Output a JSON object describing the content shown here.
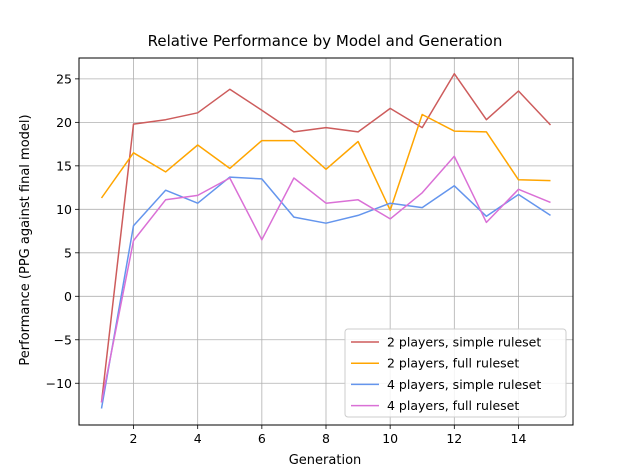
{
  "chart_data": {
    "type": "line",
    "title": "Relative Performance by Model and Generation",
    "xlabel": "Generation",
    "ylabel": "Performance (PPG against final model)",
    "x": [
      1,
      2,
      3,
      4,
      5,
      6,
      7,
      8,
      9,
      10,
      11,
      12,
      13,
      14,
      15
    ],
    "xlim": [
      0.3,
      15.7
    ],
    "ylim": [
      -14.8,
      27.4
    ],
    "xticks": [
      2,
      4,
      6,
      8,
      10,
      12,
      14
    ],
    "yticks": [
      -10,
      -5,
      0,
      5,
      10,
      15,
      20,
      25
    ],
    "xtick_labels": [
      "2",
      "4",
      "6",
      "8",
      "10",
      "12",
      "14"
    ],
    "ytick_labels": [
      "−10",
      "−5",
      "0",
      "5",
      "10",
      "15",
      "20",
      "25"
    ],
    "grid": true,
    "legend_position": "lower-right",
    "series": [
      {
        "name": "2 players, simple ruleset",
        "color": "#cd5c5c",
        "values": [
          -12.2,
          19.8,
          20.3,
          21.1,
          23.8,
          21.4,
          18.9,
          19.4,
          18.9,
          21.6,
          19.4,
          25.6,
          20.3,
          23.6,
          19.7
        ]
      },
      {
        "name": "2 players, full ruleset",
        "color": "#ffa500",
        "values": [
          11.3,
          16.5,
          14.3,
          17.4,
          14.7,
          17.9,
          17.9,
          14.6,
          17.8,
          9.9,
          20.9,
          19.0,
          18.9,
          13.4,
          13.3
        ]
      },
      {
        "name": "4 players, simple ruleset",
        "color": "#6495ed",
        "values": [
          -12.9,
          8.1,
          12.2,
          10.7,
          13.7,
          13.5,
          9.1,
          8.4,
          9.3,
          10.7,
          10.2,
          12.7,
          9.2,
          11.7,
          9.3
        ]
      },
      {
        "name": "4 players, full ruleset",
        "color": "#da70d6",
        "values": [
          -12.2,
          6.4,
          11.1,
          11.6,
          13.6,
          6.5,
          13.6,
          10.7,
          11.1,
          8.9,
          11.9,
          16.1,
          8.5,
          12.3,
          10.8
        ]
      }
    ]
  }
}
